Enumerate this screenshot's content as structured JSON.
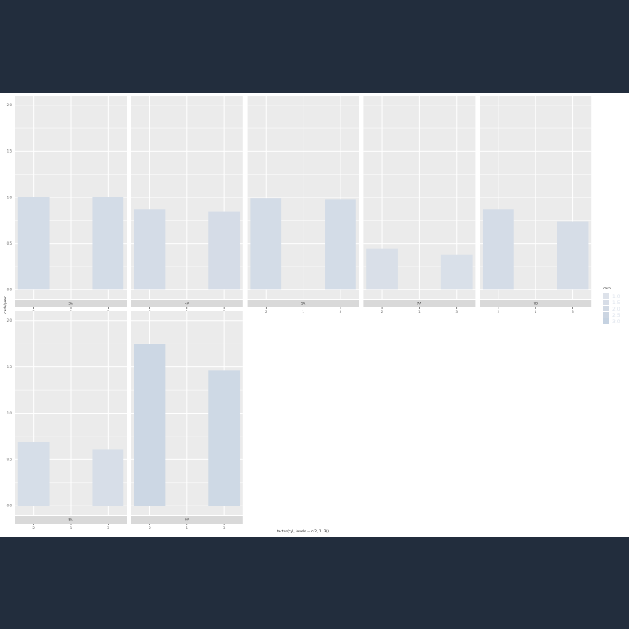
{
  "chart_data": {
    "type": "bar",
    "xlabel": "factor(cyl, levels = c(2, 1, 3))",
    "ylabel": "carb/gear",
    "ylim": [
      0,
      2.0
    ],
    "y_ticks": [
      0,
      0.5,
      1.0,
      1.5,
      2.0
    ],
    "y_tick_labels": [
      "0.0",
      "0.5",
      "1.0",
      "1.5",
      "2.0"
    ],
    "x_categories": [
      "4",
      "6",
      "8"
    ],
    "x_tick_labels": [
      "2",
      "1",
      "3"
    ],
    "panels": [
      {
        "strip": "3A",
        "values": [
          1.0,
          null,
          1.0
        ]
      },
      {
        "strip": "4A",
        "values": [
          0.87,
          null,
          0.85
        ]
      },
      {
        "strip": "5A",
        "values": [
          0.99,
          null,
          0.98
        ]
      },
      {
        "strip": "7A",
        "values": [
          0.44,
          null,
          0.38
        ]
      },
      {
        "strip": "7B",
        "values": [
          0.87,
          null,
          0.74
        ]
      },
      {
        "strip": "8A",
        "values": [
          0.69,
          null,
          0.61
        ]
      },
      {
        "strip": "9A",
        "values": [
          1.75,
          null,
          1.46
        ]
      }
    ],
    "legend": {
      "title": "carb",
      "position": "right",
      "labels": [
        "1.0",
        "1.5",
        "2.0",
        "2.5",
        "3.0"
      ],
      "colors": [
        "#dde2ea",
        "#d7dde7",
        "#d1d9e4",
        "#cbd5e2",
        "#c5d2e1"
      ]
    },
    "colors": {
      "panel_bg": "#ebebeb",
      "grid": "#ffffff",
      "strip_bg": "#d9d9d9",
      "bar_low": "#dde2ea",
      "bar_high": "#c9d5e3"
    },
    "grid": true
  }
}
